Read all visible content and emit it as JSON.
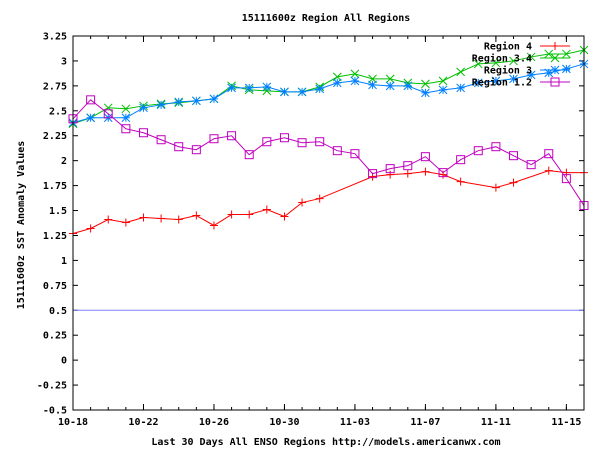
{
  "chart_data": {
    "type": "line",
    "title": "15111600z Region All Regions",
    "xlabel": "Last 30 Days All ENSO Regions http://models.americanwx.com",
    "ylabel": "15111600z SST Anomaly Values",
    "ylim": [
      -0.5,
      3.25
    ],
    "y_ticks": [
      "-0.5",
      "-0.25",
      "0",
      "0.25",
      "0.5",
      "0.75",
      "1",
      "1.25",
      "1.5",
      "1.75",
      "2",
      "2.25",
      "2.5",
      "2.75",
      "3",
      "3.25"
    ],
    "x_tick_labels": [
      "10-18",
      "10-22",
      "10-26",
      "10-30",
      "11-03",
      "11-07",
      "11-11",
      "11-15"
    ],
    "x_tick_positions": [
      0,
      4,
      8,
      12,
      16,
      20,
      24,
      28
    ],
    "x_range": [
      0,
      29
    ],
    "x": [
      0,
      1,
      2,
      3,
      4,
      5,
      6,
      7,
      8,
      9,
      10,
      11,
      12,
      13,
      14,
      15,
      16,
      17,
      18,
      19,
      20,
      21,
      22,
      23,
      24,
      25,
      26,
      27,
      28,
      29
    ],
    "legend_position": "top-right",
    "reference_line": {
      "value": 0.5,
      "color": "#8080ff"
    },
    "grid": false,
    "series": [
      {
        "name": "Region 4",
        "color": "#ff0000",
        "marker": "plus",
        "values": [
          1.27,
          1.32,
          1.41,
          1.38,
          1.43,
          1.42,
          1.41,
          1.45,
          1.35,
          1.46,
          1.46,
          1.51,
          1.44,
          1.58,
          1.62,
          null,
          null,
          1.84,
          1.86,
          1.87,
          1.89,
          1.86,
          1.79,
          null,
          1.73,
          1.78,
          null,
          1.9,
          1.88,
          1.88
        ]
      },
      {
        "name": "Region 3.4",
        "color": "#00c000",
        "marker": "x",
        "values": [
          2.37,
          2.43,
          2.53,
          2.52,
          2.55,
          2.57,
          2.58,
          2.6,
          2.62,
          2.75,
          2.71,
          2.7,
          2.69,
          2.69,
          2.74,
          2.84,
          2.87,
          2.82,
          2.82,
          2.78,
          2.77,
          2.8,
          2.89,
          2.97,
          2.98,
          3.0,
          3.04,
          3.07,
          3.07,
          3.11
        ]
      },
      {
        "name": "Region 3",
        "color": "#0080ff",
        "marker": "asterisk",
        "values": [
          2.38,
          2.43,
          2.43,
          2.43,
          2.53,
          2.56,
          2.59,
          2.6,
          2.62,
          2.73,
          2.73,
          2.74,
          2.69,
          2.69,
          2.72,
          2.78,
          2.8,
          2.76,
          2.75,
          2.75,
          2.68,
          2.71,
          2.73,
          2.78,
          2.8,
          2.82,
          2.86,
          2.88,
          2.92,
          2.97
        ]
      },
      {
        "name": "Region 1.2",
        "color": "#c000c0",
        "marker": "square",
        "values": [
          2.42,
          2.61,
          2.47,
          2.32,
          2.28,
          2.21,
          2.14,
          2.11,
          2.22,
          2.25,
          2.06,
          2.19,
          2.23,
          2.18,
          2.19,
          2.1,
          2.07,
          1.87,
          1.92,
          1.95,
          2.04,
          1.88,
          2.01,
          2.1,
          2.14,
          2.05,
          1.96,
          2.07,
          1.82,
          1.55
        ]
      }
    ]
  }
}
